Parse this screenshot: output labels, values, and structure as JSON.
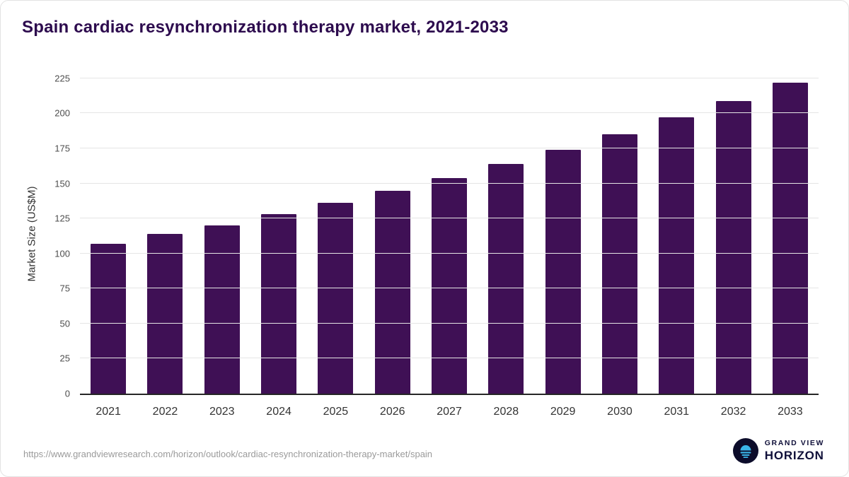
{
  "title": "Spain cardiac resynchronization therapy market, 2021-2033",
  "footer": {
    "source_url": "https://www.grandviewresearch.com/horizon/outlook/cardiac-resynchronization-therapy-market/spain",
    "logo": {
      "line1": "GRAND VIEW",
      "line2": "HORIZON"
    }
  },
  "colors": {
    "bar": "#3f1055",
    "title_text": "#2d0b4e",
    "gridline": "#e5e5e5",
    "axis_line": "#262626",
    "tick_text": "#4d4d4d",
    "url_text": "#9a9a9a",
    "logo_navy": "#0c0c2a",
    "logo_blue": "#3ab5e8"
  },
  "chart_data": {
    "type": "bar",
    "title": "Spain cardiac resynchronization therapy market, 2021-2033",
    "categories": [
      "2021",
      "2022",
      "2023",
      "2024",
      "2025",
      "2026",
      "2027",
      "2028",
      "2029",
      "2030",
      "2031",
      "2032",
      "2033"
    ],
    "values": [
      107,
      114,
      120,
      128,
      136,
      145,
      154,
      164,
      174,
      185,
      197,
      209,
      222
    ],
    "xlabel": "",
    "ylabel": "Market Size (US$M)",
    "ylim": [
      0,
      232
    ],
    "yticks": [
      0,
      25,
      50,
      75,
      100,
      125,
      150,
      175,
      200,
      225
    ],
    "grid": true,
    "legend": "none",
    "bar_color": "#3f1055"
  }
}
